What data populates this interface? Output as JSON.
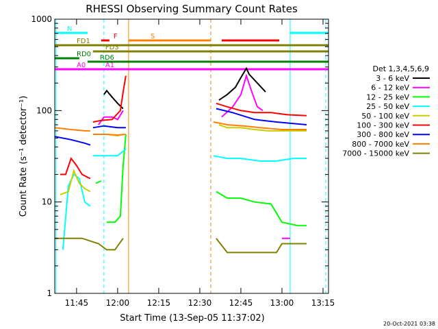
{
  "chart_data": {
    "type": "line",
    "title": "RHESSI Observing Summary Count Rates",
    "xlabel": "Start Time (13-Sep-05 11:37:02)",
    "ylabel": "Count Rate (s⁻¹ detector⁻¹)",
    "y_scale": "log",
    "ylim": [
      1,
      1000
    ],
    "xlim": [
      "11:37:02",
      "13:17:00"
    ],
    "x_ticks": [
      "11:45",
      "12:00",
      "12:15",
      "12:30",
      "12:45",
      "13:00",
      "13:15"
    ],
    "y_ticks": [
      "1",
      "10",
      "100",
      "1000"
    ],
    "legend_title": "Det 1,3,4,5,6,9",
    "legend_position": "right",
    "footer": "20-Oct-2021 03:38",
    "series": [
      {
        "name": "3 - 6 keV",
        "color": "#000000",
        "segments": [
          [
            [
              "11:55:00",
              150
            ],
            [
              "11:56:00",
              165
            ],
            [
              "11:58:00",
              140
            ],
            [
              "12:00:00",
              120
            ],
            [
              "12:02:00",
              105
            ]
          ],
          [
            [
              "12:37:00",
              130
            ],
            [
              "12:40:00",
              150
            ],
            [
              "12:43:00",
              180
            ],
            [
              "12:45:00",
              230
            ],
            [
              "12:47:00",
              290
            ],
            [
              "12:48:00",
              250
            ],
            [
              "12:51:00",
              200
            ],
            [
              "12:54:00",
              160
            ]
          ]
        ]
      },
      {
        "name": "6 - 12 keV",
        "color": "#ff00ff",
        "segments": [
          [
            [
              "11:53:00",
              70
            ],
            [
              "11:55:00",
              85
            ],
            [
              "11:58:00",
              85
            ],
            [
              "12:00:00",
              80
            ],
            [
              "12:02:00",
              100
            ]
          ],
          [
            [
              "12:38:00",
              85
            ],
            [
              "12:42:00",
              110
            ],
            [
              "12:45:00",
              150
            ],
            [
              "12:47:00",
              240
            ],
            [
              "12:49:00",
              160
            ],
            [
              "12:51:00",
              110
            ],
            [
              "12:53:00",
              100
            ]
          ],
          [
            [
              "13:00:00",
              4
            ],
            [
              "13:03:00",
              4
            ]
          ]
        ]
      },
      {
        "name": "12 - 25 keV",
        "color": "#00ff00",
        "segments": [
          [
            [
              "11:52:00",
              16
            ],
            [
              "11:54:00",
              17
            ]
          ],
          [
            [
              "11:56:00",
              6
            ],
            [
              "11:59:00",
              6
            ],
            [
              "12:01:00",
              7
            ],
            [
              "12:02:00",
              25
            ],
            [
              "12:03:00",
              55
            ]
          ],
          [
            [
              "12:36:00",
              13
            ],
            [
              "12:40:00",
              11
            ],
            [
              "12:45:00",
              11
            ],
            [
              "12:50:00",
              10
            ],
            [
              "12:56:00",
              9.5
            ],
            [
              "13:00:00",
              6
            ],
            [
              "13:06:00",
              5.5
            ],
            [
              "13:09:00",
              5.5
            ]
          ]
        ]
      },
      {
        "name": "25 - 50 keV",
        "color": "#00ffff",
        "segments": [
          [
            [
              "11:40:00",
              3
            ],
            [
              "11:42:00",
              15
            ],
            [
              "11:44:00",
              20
            ],
            [
              "11:46:00",
              18
            ],
            [
              "11:48:00",
              10
            ],
            [
              "11:50:00",
              9
            ]
          ],
          [
            [
              "11:51:00",
              32
            ],
            [
              "11:56:00",
              32
            ],
            [
              "12:00:00",
              32
            ],
            [
              "12:03:00",
              38
            ]
          ],
          [
            [
              "12:35:00",
              32
            ],
            [
              "12:40:00",
              30
            ],
            [
              "12:45:00",
              30
            ],
            [
              "12:52:00",
              28
            ],
            [
              "12:58:00",
              28
            ],
            [
              "13:04:00",
              30
            ],
            [
              "13:09:00",
              30
            ]
          ]
        ]
      },
      {
        "name": "50 - 100 keV",
        "color": "#cccc00",
        "segments": [
          [
            [
              "11:39:00",
              12
            ],
            [
              "11:42:00",
              13
            ],
            [
              "11:44:00",
              22
            ],
            [
              "11:46:00",
              16
            ],
            [
              "11:48:00",
              14
            ],
            [
              "11:50:00",
              13
            ]
          ],
          [
            [
              "11:56:00",
              55
            ],
            [
              "12:00:00",
              53
            ],
            [
              "12:02:00",
              55
            ]
          ],
          [
            [
              "12:37:00",
              70
            ],
            [
              "12:40:00",
              65
            ],
            [
              "12:45:00",
              65
            ],
            [
              "12:50:00",
              62
            ],
            [
              "12:55:00",
              60
            ],
            [
              "13:00:00",
              60
            ],
            [
              "13:09:00",
              60
            ]
          ]
        ]
      },
      {
        "name": "100 - 300 keV",
        "color": "#ff0000",
        "segments": [
          [
            [
              "11:39:00",
              20
            ],
            [
              "11:41:00",
              20
            ],
            [
              "11:43:00",
              30
            ],
            [
              "11:45:00",
              25
            ],
            [
              "11:47:00",
              20
            ],
            [
              "11:50:00",
              18
            ]
          ],
          [
            [
              "11:51:00",
              75
            ],
            [
              "11:54:00",
              78
            ],
            [
              "11:58:00",
              80
            ],
            [
              "12:01:00",
              100
            ],
            [
              "12:02:00",
              160
            ],
            [
              "12:03:00",
              240
            ]
          ],
          [
            [
              "12:36:00",
              120
            ],
            [
              "12:40:00",
              110
            ],
            [
              "12:45:00",
              100
            ],
            [
              "12:50:00",
              95
            ],
            [
              "12:56:00",
              95
            ],
            [
              "13:02:00",
              90
            ],
            [
              "13:09:00",
              88
            ]
          ]
        ]
      },
      {
        "name": "300 - 800 keV",
        "color": "#0000ff",
        "segments": [
          [
            [
              "11:37:02",
              52
            ],
            [
              "11:43:00",
              48
            ],
            [
              "11:48:00",
              44
            ],
            [
              "11:50:00",
              42
            ]
          ],
          [
            [
              "11:51:00",
              65
            ],
            [
              "11:55:00",
              68
            ],
            [
              "12:00:00",
              65
            ],
            [
              "12:03:00",
              65
            ]
          ],
          [
            [
              "12:36:00",
              105
            ],
            [
              "12:42:00",
              95
            ],
            [
              "12:50:00",
              80
            ],
            [
              "12:58:00",
              75
            ],
            [
              "13:09:00",
              70
            ]
          ]
        ]
      },
      {
        "name": "800 - 7000 keV",
        "color": "#ff8000",
        "segments": [
          [
            [
              "11:37:02",
              65
            ],
            [
              "11:43:00",
              62
            ],
            [
              "11:48:00",
              60
            ],
            [
              "11:50:00",
              60
            ]
          ],
          [
            [
              "11:51:00",
              55
            ],
            [
              "11:56:00",
              55
            ],
            [
              "12:00:00",
              54
            ],
            [
              "12:03:00",
              55
            ]
          ],
          [
            [
              "12:35:00",
              75
            ],
            [
              "12:40:00",
              70
            ],
            [
              "12:46:00",
              68
            ],
            [
              "12:52:00",
              65
            ],
            [
              "13:00:00",
              62
            ],
            [
              "13:09:00",
              62
            ]
          ]
        ]
      },
      {
        "name": "7000 - 15000 keV",
        "color": "#808000",
        "segments": [
          [
            [
              "11:37:02",
              4
            ],
            [
              "11:42:00",
              4
            ],
            [
              "11:47:00",
              4
            ],
            [
              "11:53:00",
              3.5
            ],
            [
              "11:56:00",
              3
            ],
            [
              "11:59:00",
              3
            ],
            [
              "12:02:00",
              4
            ]
          ],
          [
            [
              "12:36:00",
              4
            ],
            [
              "12:40:00",
              2.8
            ],
            [
              "12:45:00",
              2.8
            ],
            [
              "12:52:00",
              2.8
            ],
            [
              "12:58:00",
              2.8
            ],
            [
              "13:00:00",
              3.5
            ],
            [
              "13:05:00",
              3.5
            ],
            [
              "13:09:00",
              3.5
            ]
          ]
        ]
      }
    ],
    "state_bars": [
      {
        "label": "N",
        "color": "#00ffff",
        "segments": [
          [
            "11:37:02",
            "11:49:00"
          ],
          [
            "13:03:00",
            "13:17:00"
          ]
        ]
      },
      {
        "label": "S",
        "color": "#ff8000",
        "segments": [
          [
            "12:04:00",
            "12:34:00"
          ]
        ]
      },
      {
        "label": "F",
        "color": "#ff0000",
        "segments": [
          [
            "11:54:00",
            "11:57:00"
          ],
          [
            "12:38:00",
            "12:59:00"
          ]
        ]
      },
      {
        "label": "FD1",
        "color": "#808000",
        "segments": [
          [
            "11:37:02",
            "13:17:00"
          ]
        ]
      },
      {
        "label": "FD3",
        "color": "#808000",
        "segments": [
          [
            "11:51:00",
            "13:17:00"
          ]
        ]
      },
      {
        "label": "RD0",
        "color": "#008000",
        "segments": [
          [
            "11:37:02",
            "11:46:00"
          ]
        ]
      },
      {
        "label": "RD6",
        "color": "#008000",
        "segments": [
          [
            "11:49:00",
            "13:17:00"
          ]
        ]
      },
      {
        "label": "A0",
        "color": "#ff00ff",
        "segments": [
          [
            "11:37:02",
            "13:17:00"
          ]
        ]
      },
      {
        "label": "A1",
        "color": "#ff00ff",
        "segments": [
          [
            "11:51:00",
            "13:17:00"
          ]
        ]
      }
    ],
    "vertical_markers": [
      {
        "time": "11:37:30",
        "color": "#00ffff",
        "style": "solid"
      },
      {
        "time": "11:55:00",
        "color": "#00ffff",
        "style": "dashed"
      },
      {
        "time": "12:04:00",
        "color": "#ff8000",
        "style": "solid"
      },
      {
        "time": "12:34:00",
        "color": "#ff8000",
        "style": "dashed"
      },
      {
        "time": "13:03:00",
        "color": "#00ffff",
        "style": "solid"
      },
      {
        "time": "13:16:00",
        "color": "#00ffff",
        "style": "dashed"
      }
    ]
  }
}
